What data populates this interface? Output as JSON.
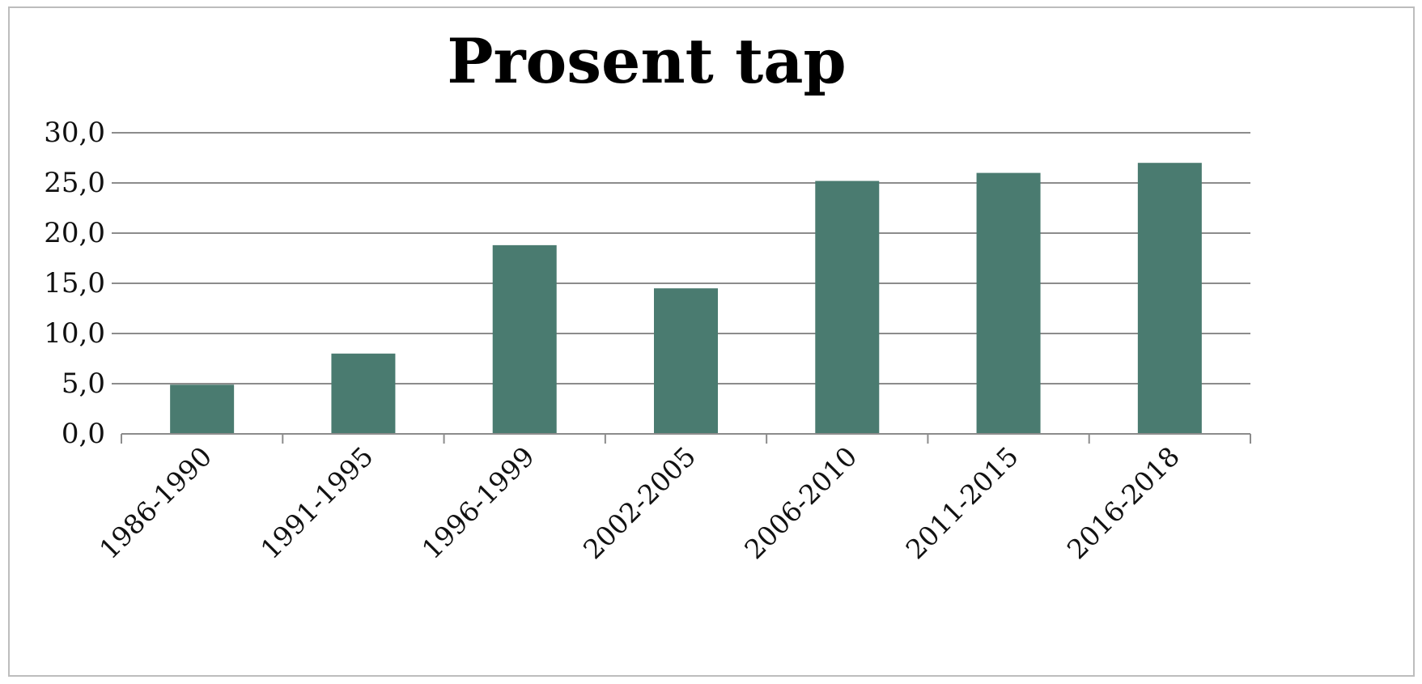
{
  "chart_data": {
    "type": "bar",
    "title": "Prosent tap",
    "categories": [
      "1986-1990",
      "1991-1995",
      "1996-1999",
      "2002-2005",
      "2006-2010",
      "2011-2015",
      "2016-2018"
    ],
    "values": [
      4.9,
      8.0,
      18.8,
      14.5,
      25.2,
      26.0,
      27.0
    ],
    "y_tick_labels": [
      "0,0",
      "5,0",
      "10,0",
      "15,0",
      "20,0",
      "25,0",
      "30,0"
    ],
    "ylim": [
      0,
      30
    ],
    "y_step": 5,
    "xlabel": "",
    "ylabel": "",
    "grid": true,
    "legend": "none",
    "colors": {
      "bar": "#4a7b70",
      "grid": "#8c8c8c",
      "axis": "#8c8c8c",
      "frame": "#bdbdbd"
    }
  }
}
